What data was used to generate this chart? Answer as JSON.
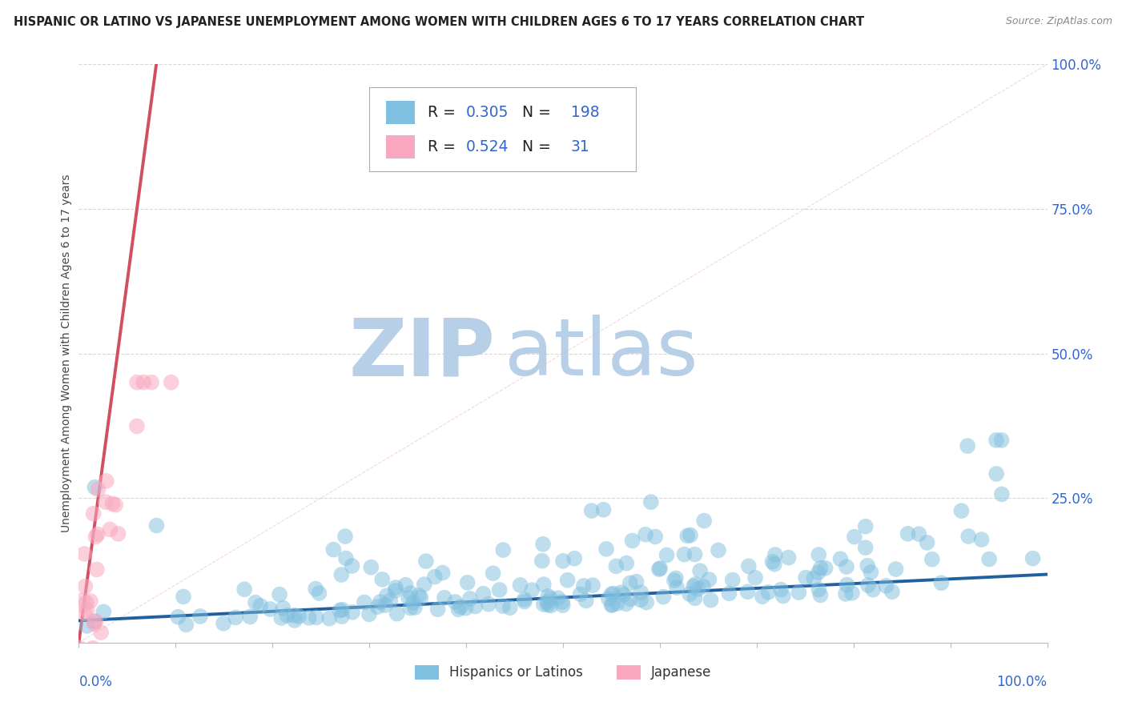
{
  "title": "HISPANIC OR LATINO VS JAPANESE UNEMPLOYMENT AMONG WOMEN WITH CHILDREN AGES 6 TO 17 YEARS CORRELATION CHART",
  "source": "Source: ZipAtlas.com",
  "ylabel": "Unemployment Among Women with Children Ages 6 to 17 years",
  "legend_label1": "Hispanics or Latinos",
  "legend_label2": "Japanese",
  "r1": 0.305,
  "n1": 198,
  "r2": 0.524,
  "n2": 31,
  "color_blue": "#7fbfdf",
  "color_pink": "#f9a8bf",
  "color_blue_line": "#2060a0",
  "color_pink_line": "#d05060",
  "color_diag": "#e8b0b8",
  "background": "#ffffff",
  "grid_color": "#c8c8c8",
  "title_color": "#222222",
  "watermark_zip_color": "#b8cfe8",
  "watermark_atlas_color": "#b8cfe8",
  "figsize": [
    14.06,
    8.92
  ],
  "dpi": 100,
  "xlim": [
    0.0,
    1.0
  ],
  "ylim": [
    0.0,
    1.0
  ],
  "blue_trendline_x": [
    0.0,
    1.0
  ],
  "blue_trendline_y": [
    0.038,
    0.118
  ],
  "pink_trendline_x": [
    0.0,
    0.08
  ],
  "pink_trendline_y": [
    0.0,
    1.0
  ]
}
